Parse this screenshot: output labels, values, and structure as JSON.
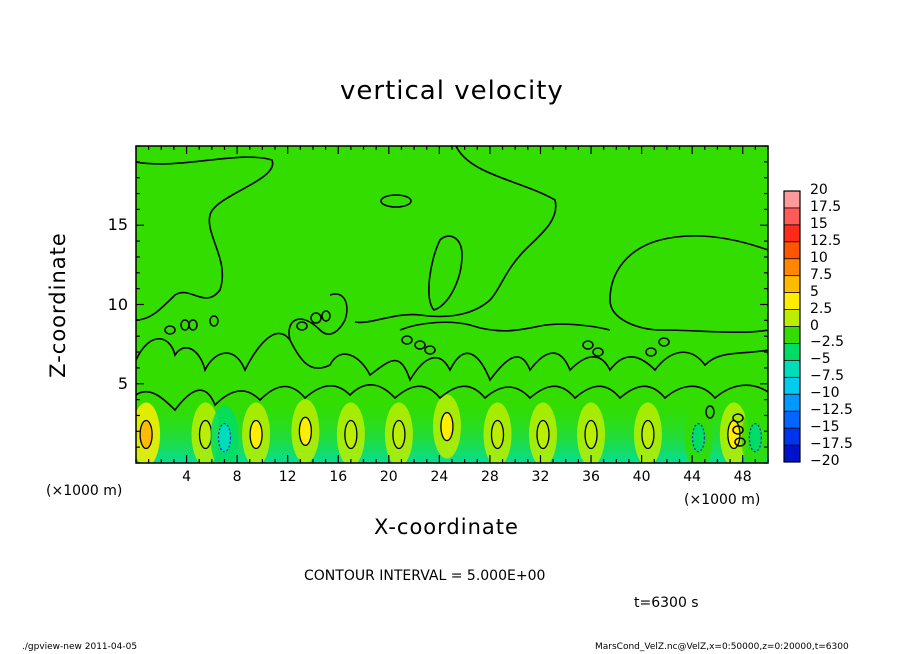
{
  "chart_data": {
    "type": "heatmap",
    "title": "vertical velocity",
    "xlabel": "X-coordinate",
    "ylabel": "Z-coordinate",
    "x_unit": "(×1000 m)",
    "xlim": [
      0,
      50
    ],
    "ylim": [
      0,
      20
    ],
    "x_ticks": [
      4,
      8,
      12,
      16,
      20,
      24,
      28,
      32,
      36,
      40,
      44,
      48
    ],
    "y_ticks": [
      5,
      10,
      15
    ],
    "colorbar": {
      "levels": [
        20,
        17.5,
        15,
        12.5,
        10,
        7.5,
        5,
        2.5,
        0,
        -2.5,
        -5,
        -7.5,
        -10,
        -12.5,
        -15,
        -17.5,
        -20
      ],
      "labels": [
        "20",
        "17.5",
        "15",
        "12.5",
        "10",
        "7.5",
        "5",
        "2.5",
        "0",
        "−2.5",
        "−5",
        "−7.5",
        "−10",
        "−12.5",
        "−15",
        "−17.5",
        "−20"
      ],
      "colors": [
        "#ff9a9a",
        "#ff5a5a",
        "#ff2a1a",
        "#ff5500",
        "#ff8800",
        "#ffbb00",
        "#ffee00",
        "#bbee00",
        "#33dd00",
        "#00dd66",
        "#00ddbb",
        "#00ccee",
        "#0099ff",
        "#0066ff",
        "#0033ee",
        "#0011cc",
        "#6600bb"
      ]
    },
    "updrafts": [
      {
        "x": 0.8,
        "z": 1.8,
        "value": 7.5
      },
      {
        "x": 5.5,
        "z": 1.8,
        "value": 2.5
      },
      {
        "x": 9.5,
        "z": 1.8,
        "value": 5
      },
      {
        "x": 13.4,
        "z": 2.0,
        "value": 5
      },
      {
        "x": 17.0,
        "z": 1.8,
        "value": 2.5
      },
      {
        "x": 20.8,
        "z": 1.8,
        "value": 2.5
      },
      {
        "x": 24.6,
        "z": 2.3,
        "value": 5
      },
      {
        "x": 28.6,
        "z": 1.8,
        "value": 2.5
      },
      {
        "x": 32.2,
        "z": 1.8,
        "value": 2.5
      },
      {
        "x": 36.0,
        "z": 1.8,
        "value": 2.5
      },
      {
        "x": 40.5,
        "z": 1.8,
        "value": 2.5
      },
      {
        "x": 47.3,
        "z": 1.8,
        "value": 5
      }
    ],
    "downdrafts": [
      {
        "x": 7.0,
        "z": 1.6,
        "value": -5
      },
      {
        "x": 44.5,
        "z": 1.6,
        "value": -2.5
      },
      {
        "x": 49.0,
        "z": 1.6,
        "value": -2.5
      }
    ]
  },
  "contour_interval": "CONTOUR INTERVAL = 5.000E+00",
  "time_label": "t=6300 s",
  "footer_left": "./gpview-new   2011-04-05",
  "footer_right": "MarsCond_VelZ.nc@VelZ,x=0:50000,z=0:20000,t=6300"
}
